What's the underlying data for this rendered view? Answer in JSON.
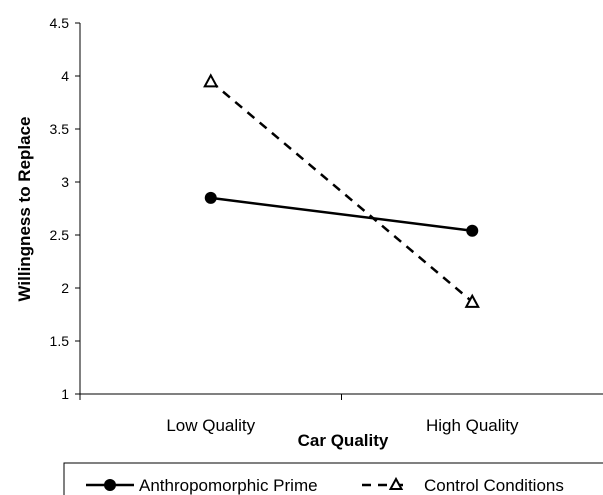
{
  "chart_data": {
    "type": "line",
    "title": "",
    "xlabel": "Car Quality",
    "ylabel": "Willingness to Replace",
    "categories": [
      "Low Quality",
      "High Quality"
    ],
    "ylim": [
      1,
      4.5
    ],
    "yticks": [
      1,
      1.5,
      2,
      2.5,
      3,
      3.5,
      4,
      4.5
    ],
    "ytick_labels": [
      "1",
      "1.5",
      "2",
      "2.5",
      "3",
      "3.5",
      "4",
      "4.5"
    ],
    "grid": false,
    "legend_position": "bottom",
    "series": [
      {
        "name": "Anthropomorphic Prime",
        "values": [
          2.85,
          2.54
        ],
        "marker": "circle",
        "line_style": "solid",
        "color": "#000000"
      },
      {
        "name": "Control Conditions",
        "values": [
          3.95,
          1.87
        ],
        "marker": "triangle",
        "line_style": "dashed",
        "color": "#000000"
      }
    ]
  }
}
